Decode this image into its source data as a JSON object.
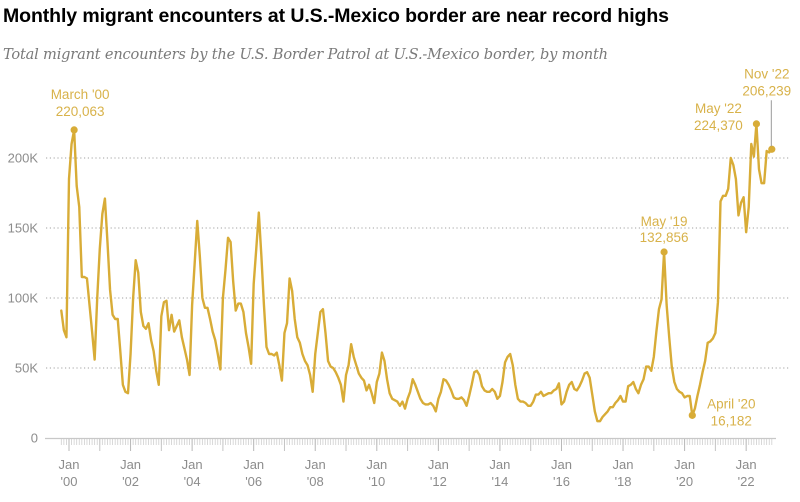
{
  "header": {
    "title": "Monthly migrant encounters at U.S.-Mexico border are near record highs",
    "subtitle": "Total migrant encounters by the U.S. Border Patrol at U.S.-Mexico border, by month"
  },
  "colors": {
    "line": "#d8ac37",
    "annotation": "#d8b24a",
    "grid": "#b5b5b5",
    "axis_text": "#8c8c8c",
    "leader": "#9a9a9a"
  },
  "chart_data": {
    "type": "line",
    "title": "Monthly migrant encounters at U.S.-Mexico border are near record highs",
    "subtitle": "Total migrant encounters by the U.S. Border Patrol at U.S.-Mexico border, by month",
    "xlabel": "",
    "ylabel": "",
    "ylim": [
      0,
      230000
    ],
    "grid": true,
    "y_ticks": [
      {
        "value": 0,
        "label": "0"
      },
      {
        "value": 50000,
        "label": "50K"
      },
      {
        "value": 100000,
        "label": "100K"
      },
      {
        "value": 150000,
        "label": "150K"
      },
      {
        "value": 200000,
        "label": "200K"
      }
    ],
    "x_ticks": [
      {
        "year": 2000,
        "line1": "Jan",
        "line2": "'00"
      },
      {
        "year": 2002,
        "line1": "Jan",
        "line2": "'02"
      },
      {
        "year": 2004,
        "line1": "Jan",
        "line2": "'04"
      },
      {
        "year": 2006,
        "line1": "Jan",
        "line2": "'06"
      },
      {
        "year": 2008,
        "line1": "Jan",
        "line2": "'08"
      },
      {
        "year": 2010,
        "line1": "Jan",
        "line2": "'10"
      },
      {
        "year": 2012,
        "line1": "Jan",
        "line2": "'12"
      },
      {
        "year": 2014,
        "line1": "Jan",
        "line2": "'14"
      },
      {
        "year": 2016,
        "line1": "Jan",
        "line2": "'16"
      },
      {
        "year": 2018,
        "line1": "Jan",
        "line2": "'18"
      },
      {
        "year": 2020,
        "line1": "Jan",
        "line2": "'20"
      },
      {
        "year": 2022,
        "line1": "Jan",
        "line2": "'22"
      }
    ],
    "start": {
      "year": 1999,
      "month": 10
    },
    "series": [
      {
        "name": "Total migrant encounters",
        "values": [
          91000,
          77000,
          72000,
          185000,
          210000,
          220063,
          180000,
          165000,
          115000,
          115000,
          114000,
          95000,
          76000,
          56000,
          100000,
          135000,
          160000,
          171000,
          140000,
          106000,
          88000,
          85000,
          85000,
          62000,
          38000,
          33000,
          32000,
          60000,
          100000,
          127000,
          118000,
          90000,
          80000,
          78000,
          82000,
          70000,
          62000,
          48000,
          38000,
          87000,
          97000,
          98000,
          77000,
          88000,
          76000,
          80000,
          84000,
          72000,
          64000,
          56000,
          45000,
          95000,
          125000,
          155000,
          130000,
          100000,
          93000,
          93000,
          85000,
          76000,
          70000,
          60000,
          49000,
          100000,
          120000,
          143000,
          140000,
          112000,
          91000,
          96000,
          96000,
          90000,
          75000,
          65000,
          53000,
          110000,
          135000,
          161000,
          130000,
          95000,
          65000,
          60000,
          60000,
          59000,
          61000,
          52000,
          41000,
          75000,
          82000,
          114000,
          105000,
          85000,
          72000,
          68000,
          60000,
          55000,
          52000,
          45000,
          33000,
          60000,
          75000,
          90000,
          92000,
          75000,
          55000,
          51000,
          50000,
          47000,
          43000,
          38000,
          26000,
          45000,
          52000,
          67000,
          58000,
          52000,
          46000,
          43000,
          41000,
          34000,
          38000,
          32000,
          25000,
          40000,
          46000,
          61000,
          55000,
          42000,
          32000,
          28000,
          27000,
          26000,
          23000,
          26000,
          21000,
          28000,
          33000,
          42000,
          38000,
          33000,
          28000,
          25000,
          24000,
          24000,
          25000,
          23000,
          19000,
          28000,
          33000,
          42000,
          41000,
          38000,
          34000,
          29000,
          28000,
          28000,
          29000,
          27000,
          23000,
          30000,
          38000,
          47000,
          48000,
          45000,
          37000,
          34000,
          33000,
          33000,
          35000,
          33000,
          28000,
          30000,
          40000,
          54000,
          58000,
          60000,
          52000,
          38000,
          28000,
          26000,
          26000,
          25000,
          23000,
          23000,
          26000,
          31000,
          31000,
          33000,
          30000,
          31000,
          32000,
          32000,
          34000,
          35000,
          39000,
          24000,
          26000,
          33000,
          38000,
          40000,
          35000,
          34000,
          37000,
          41000,
          46000,
          47000,
          43000,
          31000,
          19000,
          12000,
          12000,
          15000,
          17000,
          19000,
          22000,
          22000,
          25000,
          27000,
          30000,
          26000,
          26000,
          37000,
          38000,
          40000,
          35000,
          32000,
          38000,
          42000,
          51000,
          51000,
          48000,
          58000,
          76000,
          92000,
          99000,
          132856,
          95000,
          72000,
          51000,
          40000,
          35000,
          33000,
          32000,
          29000,
          30000,
          30000,
          16182,
          21000,
          30000,
          38000,
          47000,
          55000,
          68000,
          69000,
          71000,
          75000,
          97000,
          169000,
          173000,
          173000,
          178000,
          200000,
          195000,
          185000,
          159000,
          168000,
          172000,
          147000,
          165000,
          210000,
          201000,
          224370,
          192000,
          182000,
          182000,
          205000,
          204000,
          206239
        ]
      }
    ],
    "annotations": [
      {
        "label": "March '00",
        "value_label": "220,063",
        "year": 2000,
        "month": 3,
        "value": 220063,
        "placement": "above"
      },
      {
        "label": "May '19",
        "value_label": "132,856",
        "year": 2019,
        "month": 5,
        "value": 132856,
        "placement": "above"
      },
      {
        "label": "April '20",
        "value_label": "16,182",
        "year": 2020,
        "month": 4,
        "value": 16182,
        "placement": "right"
      },
      {
        "label": "May '22",
        "value_label": "224,370",
        "year": 2022,
        "month": 5,
        "value": 224370,
        "placement": "above-left"
      },
      {
        "label": "Nov '22",
        "value_label": "206,239",
        "year": 2022,
        "month": 11,
        "value": 206239,
        "placement": "above-with-leader"
      }
    ]
  }
}
